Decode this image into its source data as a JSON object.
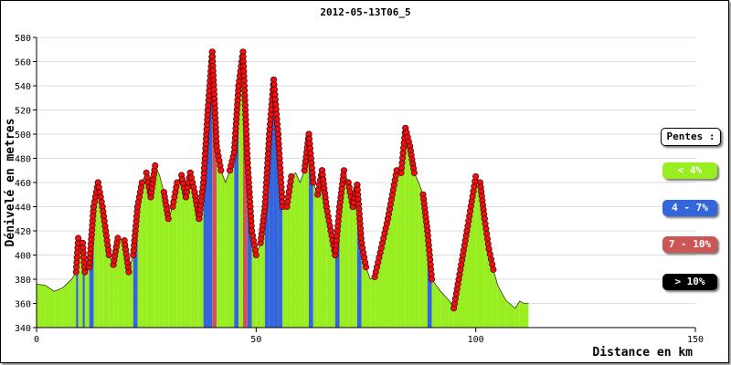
{
  "chart_data": {
    "type": "area",
    "title": "2012-05-13T06_5",
    "xlabel": "Distance en km",
    "ylabel": "Dénivelé en metres",
    "xlim": [
      0,
      150
    ],
    "ylim": [
      340,
      580
    ],
    "x_ticks": [
      0,
      50,
      100,
      150
    ],
    "y_ticks": [
      340,
      360,
      380,
      400,
      420,
      440,
      460,
      480,
      500,
      520,
      540,
      560,
      580
    ],
    "grid": true,
    "profile": [
      [
        0,
        376
      ],
      [
        2,
        375
      ],
      [
        4,
        370
      ],
      [
        6,
        373
      ],
      [
        8,
        380
      ],
      [
        9,
        386
      ],
      [
        9.5,
        414
      ],
      [
        10.5,
        410
      ],
      [
        11,
        386
      ],
      [
        12,
        390
      ],
      [
        13,
        440
      ],
      [
        14,
        460
      ],
      [
        15,
        440
      ],
      [
        16.5,
        400
      ],
      [
        17.5,
        392
      ],
      [
        18.5,
        414
      ],
      [
        20,
        412
      ],
      [
        21,
        386
      ],
      [
        22,
        400
      ],
      [
        23,
        440
      ],
      [
        24,
        460
      ],
      [
        25,
        468
      ],
      [
        26,
        448
      ],
      [
        27,
        474
      ],
      [
        28,
        466
      ],
      [
        29,
        452
      ],
      [
        30,
        430
      ],
      [
        31,
        440
      ],
      [
        32,
        460
      ],
      [
        33,
        466
      ],
      [
        34,
        448
      ],
      [
        35,
        468
      ],
      [
        36,
        452
      ],
      [
        37,
        430
      ],
      [
        38,
        460
      ],
      [
        39,
        520
      ],
      [
        40,
        568
      ],
      [
        41,
        490
      ],
      [
        42,
        470
      ],
      [
        43,
        460
      ],
      [
        44,
        470
      ],
      [
        45,
        485
      ],
      [
        46,
        540
      ],
      [
        47,
        568
      ],
      [
        48,
        480
      ],
      [
        49,
        420
      ],
      [
        50,
        400
      ],
      [
        51,
        410
      ],
      [
        52,
        440
      ],
      [
        53,
        500
      ],
      [
        54,
        545
      ],
      [
        55,
        500
      ],
      [
        56,
        440
      ],
      [
        57,
        440
      ],
      [
        58,
        465
      ],
      [
        59,
        468
      ],
      [
        60,
        460
      ],
      [
        61,
        470
      ],
      [
        62,
        500
      ],
      [
        63,
        460
      ],
      [
        64,
        450
      ],
      [
        65,
        470
      ],
      [
        66,
        440
      ],
      [
        67,
        420
      ],
      [
        68,
        400
      ],
      [
        69,
        440
      ],
      [
        70,
        470
      ],
      [
        71,
        460
      ],
      [
        72,
        440
      ],
      [
        73,
        458
      ],
      [
        74,
        410
      ],
      [
        75,
        390
      ],
      [
        76,
        380
      ],
      [
        77,
        382
      ],
      [
        80,
        430
      ],
      [
        82,
        470
      ],
      [
        83,
        468
      ],
      [
        84,
        505
      ],
      [
        85,
        490
      ],
      [
        86,
        468
      ],
      [
        87,
        460
      ],
      [
        88,
        450
      ],
      [
        89,
        420
      ],
      [
        90,
        380
      ],
      [
        91,
        375
      ],
      [
        92,
        370
      ],
      [
        93,
        366
      ],
      [
        94,
        362
      ],
      [
        95,
        356
      ],
      [
        98,
        420
      ],
      [
        100,
        465
      ],
      [
        101,
        460
      ],
      [
        102,
        430
      ],
      [
        103,
        405
      ],
      [
        104,
        388
      ],
      [
        105,
        375
      ],
      [
        106,
        368
      ],
      [
        107,
        362
      ],
      [
        109,
        356
      ],
      [
        110,
        362
      ],
      [
        111,
        360
      ],
      [
        112,
        360
      ]
    ],
    "slope_categories": [
      {
        "label": "< 4%",
        "color": "#99ee22"
      },
      {
        "label": "4 - 7%",
        "color": "#3366dd"
      },
      {
        "label": "7 - 10%",
        "color": "#cc5555"
      },
      {
        "label": "> 10%",
        "color": "#000000"
      }
    ],
    "legend": {
      "title": "Pentes :",
      "placement": "right"
    },
    "series": [
      {
        "name": "< 4%",
        "values": []
      }
    ]
  }
}
